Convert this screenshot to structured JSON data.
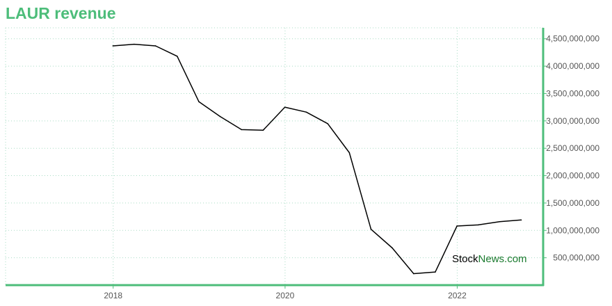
{
  "title": "LAUR revenue",
  "colors": {
    "title": "#4dbd7a",
    "axis": "#4dbd7a",
    "grid": "#a8dcc4",
    "line": "#000000",
    "tick_text": "#555555",
    "brand_accent": "#1a7a2e"
  },
  "watermark": {
    "part1": "Stock",
    "part2": "News",
    "part3": ".com"
  },
  "chart_data": {
    "type": "line",
    "title": "LAUR revenue",
    "xlabel": "",
    "ylabel": "",
    "xlim": [
      "2016-10-01",
      "2023-01-01"
    ],
    "ylim": [
      0,
      4700000000
    ],
    "grid": true,
    "y_axis_side": "right",
    "x_ticks": [
      "2018",
      "2020",
      "2022"
    ],
    "y_ticks": [
      {
        "value": 500000000,
        "label": "500,000,000"
      },
      {
        "value": 1000000000,
        "label": "1,000,000,000"
      },
      {
        "value": 1500000000,
        "label": "1,500,000,000"
      },
      {
        "value": 2000000000,
        "label": "2,000,000,000"
      },
      {
        "value": 2500000000,
        "label": "2,500,000,000"
      },
      {
        "value": 3000000000,
        "label": "3,000,000,000"
      },
      {
        "value": 3500000000,
        "label": "3,500,000,000"
      },
      {
        "value": 4000000000,
        "label": "4,000,000,000"
      },
      {
        "value": 4500000000,
        "label": "4,500,000,000"
      }
    ],
    "series": [
      {
        "points": [
          [
            "2017-12-31",
            4370000000
          ],
          [
            "2018-03-31",
            4400000000
          ],
          [
            "2018-06-30",
            4370000000
          ],
          [
            "2018-09-30",
            4180000000
          ],
          [
            "2018-12-31",
            3350000000
          ],
          [
            "2019-03-31",
            3080000000
          ],
          [
            "2019-06-30",
            2840000000
          ],
          [
            "2019-09-30",
            2830000000
          ],
          [
            "2019-12-31",
            3250000000
          ],
          [
            "2020-03-31",
            3160000000
          ],
          [
            "2020-06-30",
            2950000000
          ],
          [
            "2020-09-30",
            2420000000
          ],
          [
            "2020-12-31",
            1020000000
          ],
          [
            "2021-03-31",
            680000000
          ],
          [
            "2021-06-30",
            210000000
          ],
          [
            "2021-09-30",
            240000000
          ],
          [
            "2021-12-31",
            1080000000
          ],
          [
            "2022-03-31",
            1100000000
          ],
          [
            "2022-06-30",
            1160000000
          ],
          [
            "2022-09-30",
            1190000000
          ]
        ]
      }
    ]
  }
}
